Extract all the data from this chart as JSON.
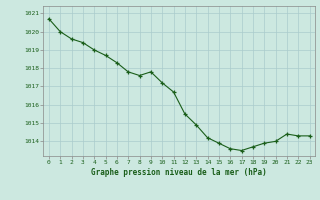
{
  "x": [
    0,
    1,
    2,
    3,
    4,
    5,
    6,
    7,
    8,
    9,
    10,
    11,
    12,
    13,
    14,
    15,
    16,
    17,
    18,
    19,
    20,
    21,
    22,
    23
  ],
  "y": [
    1020.7,
    1020.0,
    1019.6,
    1019.4,
    1019.0,
    1018.7,
    1018.3,
    1017.8,
    1017.6,
    1017.8,
    1017.2,
    1016.7,
    1015.5,
    1014.9,
    1014.2,
    1013.9,
    1013.6,
    1013.5,
    1013.7,
    1013.9,
    1014.0,
    1014.4,
    1014.3,
    1014.3
  ],
  "line_color": "#1a5e1a",
  "marker": "+",
  "bg_color": "#cce8e0",
  "grid_color": "#aacccc",
  "xlabel": "Graphe pression niveau de la mer (hPa)",
  "xlabel_color": "#1a5e1a",
  "tick_color": "#1a5e1a",
  "ylabel_ticks": [
    1014,
    1015,
    1016,
    1017,
    1018,
    1019,
    1020,
    1021
  ],
  "ylim": [
    1013.2,
    1021.4
  ],
  "xlim": [
    -0.5,
    23.5
  ],
  "figsize": [
    3.2,
    2.0
  ],
  "dpi": 100
}
